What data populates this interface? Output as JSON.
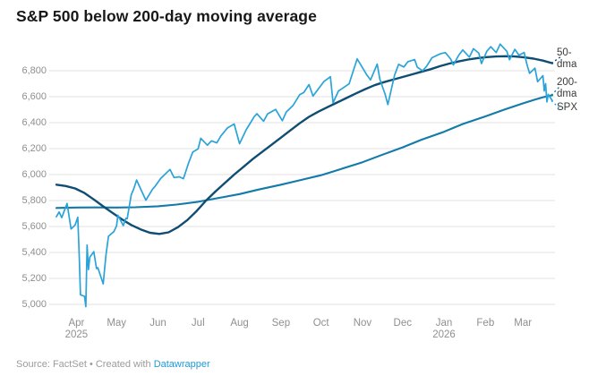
{
  "header": {
    "title": "S&P 500 below 200-day moving average"
  },
  "footer": {
    "source_text": "Source: FactSet",
    "separator": "•",
    "created_with": "Created with",
    "link_label": "Datawrapper",
    "link_color": "#1e9ad6"
  },
  "chart_data": {
    "type": "line",
    "title": "S&P 500 below 200-day moving average",
    "grid": true,
    "legend_position": "right-edge-labels",
    "x_range": [
      "2025-03-17",
      "2026-03-23"
    ],
    "ylim": [
      4930,
      7030
    ],
    "y_ticks": [
      5000,
      5200,
      5400,
      5600,
      5800,
      6000,
      6200,
      6400,
      6600,
      6800
    ],
    "x_ticks": [
      {
        "label": "Apr",
        "sub": "2025",
        "date": "2025-04-01"
      },
      {
        "label": "May",
        "sub": "",
        "date": "2025-05-01"
      },
      {
        "label": "Jun",
        "sub": "",
        "date": "2025-06-01"
      },
      {
        "label": "Jul",
        "sub": "",
        "date": "2025-07-01"
      },
      {
        "label": "Aug",
        "sub": "",
        "date": "2025-08-01"
      },
      {
        "label": "Sep",
        "sub": "",
        "date": "2025-09-01"
      },
      {
        "label": "Oct",
        "sub": "",
        "date": "2025-10-01"
      },
      {
        "label": "Nov",
        "sub": "",
        "date": "2025-11-01"
      },
      {
        "label": "Dec",
        "sub": "",
        "date": "2025-12-01"
      },
      {
        "label": "Jan",
        "sub": "2026",
        "date": "2026-01-01"
      },
      {
        "label": "Feb",
        "sub": "",
        "date": "2026-02-01"
      },
      {
        "label": "Mar",
        "sub": "",
        "date": "2026-03-01"
      }
    ],
    "series": [
      {
        "name": "200-dma",
        "label": "200-dma",
        "color": "#127ba8",
        "width": 2.1,
        "points": [
          [
            "2025-03-17",
            5743
          ],
          [
            "2025-04-01",
            5746
          ],
          [
            "2025-04-15",
            5747
          ],
          [
            "2025-05-01",
            5746
          ],
          [
            "2025-05-15",
            5748
          ],
          [
            "2025-06-01",
            5756
          ],
          [
            "2025-06-15",
            5769
          ],
          [
            "2025-07-01",
            5790
          ],
          [
            "2025-07-15",
            5817
          ],
          [
            "2025-08-01",
            5850
          ],
          [
            "2025-08-15",
            5884
          ],
          [
            "2025-09-01",
            5922
          ],
          [
            "2025-09-15",
            5956
          ],
          [
            "2025-10-01",
            5995
          ],
          [
            "2025-10-15",
            6040
          ],
          [
            "2025-11-01",
            6095
          ],
          [
            "2025-11-15",
            6150
          ],
          [
            "2025-12-01",
            6210
          ],
          [
            "2025-12-15",
            6268
          ],
          [
            "2026-01-01",
            6330
          ],
          [
            "2026-01-15",
            6390
          ],
          [
            "2026-02-01",
            6448
          ],
          [
            "2026-02-15",
            6500
          ],
          [
            "2026-03-01",
            6548
          ],
          [
            "2026-03-10",
            6578
          ],
          [
            "2026-03-17",
            6598
          ],
          [
            "2026-03-23",
            6612
          ]
        ]
      },
      {
        "name": "50-dma",
        "label": "50-dma",
        "color": "#0f4d73",
        "width": 2.4,
        "points": [
          [
            "2025-03-17",
            5922
          ],
          [
            "2025-03-24",
            5912
          ],
          [
            "2025-03-31",
            5893
          ],
          [
            "2025-04-07",
            5858
          ],
          [
            "2025-04-14",
            5808
          ],
          [
            "2025-04-21",
            5755
          ],
          [
            "2025-04-28",
            5705
          ],
          [
            "2025-05-05",
            5655
          ],
          [
            "2025-05-12",
            5612
          ],
          [
            "2025-05-19",
            5578
          ],
          [
            "2025-05-26",
            5552
          ],
          [
            "2025-06-02",
            5543
          ],
          [
            "2025-06-09",
            5555
          ],
          [
            "2025-06-16",
            5595
          ],
          [
            "2025-06-23",
            5650
          ],
          [
            "2025-06-30",
            5720
          ],
          [
            "2025-07-07",
            5800
          ],
          [
            "2025-07-14",
            5870
          ],
          [
            "2025-07-21",
            5935
          ],
          [
            "2025-07-28",
            6000
          ],
          [
            "2025-08-04",
            6060
          ],
          [
            "2025-08-11",
            6120
          ],
          [
            "2025-08-18",
            6175
          ],
          [
            "2025-08-25",
            6230
          ],
          [
            "2025-09-01",
            6285
          ],
          [
            "2025-09-08",
            6340
          ],
          [
            "2025-09-15",
            6395
          ],
          [
            "2025-09-22",
            6445
          ],
          [
            "2025-09-29",
            6485
          ],
          [
            "2025-10-06",
            6520
          ],
          [
            "2025-10-13",
            6555
          ],
          [
            "2025-10-20",
            6590
          ],
          [
            "2025-10-27",
            6625
          ],
          [
            "2025-11-03",
            6658
          ],
          [
            "2025-11-10",
            6688
          ],
          [
            "2025-11-17",
            6712
          ],
          [
            "2025-11-24",
            6732
          ],
          [
            "2025-12-01",
            6752
          ],
          [
            "2025-12-08",
            6772
          ],
          [
            "2025-12-15",
            6792
          ],
          [
            "2025-12-22",
            6812
          ],
          [
            "2025-12-29",
            6835
          ],
          [
            "2026-01-05",
            6855
          ],
          [
            "2026-01-12",
            6872
          ],
          [
            "2026-01-19",
            6886
          ],
          [
            "2026-01-26",
            6897
          ],
          [
            "2026-02-02",
            6905
          ],
          [
            "2026-02-09",
            6910
          ],
          [
            "2026-02-16",
            6912
          ],
          [
            "2026-02-23",
            6910
          ],
          [
            "2026-03-02",
            6903
          ],
          [
            "2026-03-09",
            6893
          ],
          [
            "2026-03-16",
            6878
          ],
          [
            "2026-03-23",
            6858
          ]
        ]
      },
      {
        "name": "SPX",
        "label": "SPX",
        "color": "#2aa3d9",
        "width": 1.7,
        "points": [
          [
            "2025-03-17",
            5675
          ],
          [
            "2025-03-19",
            5712
          ],
          [
            "2025-03-21",
            5668
          ],
          [
            "2025-03-25",
            5777
          ],
          [
            "2025-03-28",
            5581
          ],
          [
            "2025-03-31",
            5612
          ],
          [
            "2025-04-02",
            5671
          ],
          [
            "2025-04-03",
            5396
          ],
          [
            "2025-04-04",
            5074
          ],
          [
            "2025-04-07",
            5062
          ],
          [
            "2025-04-08",
            4983
          ],
          [
            "2025-04-09",
            5457
          ],
          [
            "2025-04-10",
            5268
          ],
          [
            "2025-04-11",
            5363
          ],
          [
            "2025-04-14",
            5406
          ],
          [
            "2025-04-16",
            5276
          ],
          [
            "2025-04-17",
            5283
          ],
          [
            "2025-04-21",
            5158
          ],
          [
            "2025-04-23",
            5376
          ],
          [
            "2025-04-25",
            5525
          ],
          [
            "2025-04-29",
            5561
          ],
          [
            "2025-05-01",
            5604
          ],
          [
            "2025-05-02",
            5687
          ],
          [
            "2025-05-06",
            5607
          ],
          [
            "2025-05-08",
            5663
          ],
          [
            "2025-05-09",
            5660
          ],
          [
            "2025-05-12",
            5844
          ],
          [
            "2025-05-14",
            5893
          ],
          [
            "2025-05-16",
            5958
          ],
          [
            "2025-05-21",
            5845
          ],
          [
            "2025-05-23",
            5803
          ],
          [
            "2025-05-28",
            5888
          ],
          [
            "2025-05-30",
            5912
          ],
          [
            "2025-06-03",
            5970
          ],
          [
            "2025-06-06",
            6000
          ],
          [
            "2025-06-10",
            6039
          ],
          [
            "2025-06-13",
            5977
          ],
          [
            "2025-06-17",
            5983
          ],
          [
            "2025-06-20",
            5968
          ],
          [
            "2025-06-24",
            6092
          ],
          [
            "2025-06-27",
            6173
          ],
          [
            "2025-07-01",
            6198
          ],
          [
            "2025-07-03",
            6279
          ],
          [
            "2025-07-08",
            6226
          ],
          [
            "2025-07-11",
            6260
          ],
          [
            "2025-07-15",
            6244
          ],
          [
            "2025-07-18",
            6297
          ],
          [
            "2025-07-23",
            6359
          ],
          [
            "2025-07-28",
            6390
          ],
          [
            "2025-08-01",
            6238
          ],
          [
            "2025-08-06",
            6345
          ],
          [
            "2025-08-12",
            6446
          ],
          [
            "2025-08-14",
            6469
          ],
          [
            "2025-08-19",
            6411
          ],
          [
            "2025-08-22",
            6467
          ],
          [
            "2025-08-28",
            6502
          ],
          [
            "2025-09-02",
            6415
          ],
          [
            "2025-09-05",
            6482
          ],
          [
            "2025-09-10",
            6532
          ],
          [
            "2025-09-15",
            6615
          ],
          [
            "2025-09-18",
            6632
          ],
          [
            "2025-09-22",
            6693
          ],
          [
            "2025-09-25",
            6605
          ],
          [
            "2025-09-29",
            6661
          ],
          [
            "2025-10-03",
            6716
          ],
          [
            "2025-10-08",
            6754
          ],
          [
            "2025-10-10",
            6553
          ],
          [
            "2025-10-14",
            6644
          ],
          [
            "2025-10-17",
            6664
          ],
          [
            "2025-10-22",
            6699
          ],
          [
            "2025-10-28",
            6891
          ],
          [
            "2025-10-31",
            6840
          ],
          [
            "2025-11-04",
            6772
          ],
          [
            "2025-11-07",
            6729
          ],
          [
            "2025-11-12",
            6851
          ],
          [
            "2025-11-14",
            6734
          ],
          [
            "2025-11-18",
            6617
          ],
          [
            "2025-11-20",
            6539
          ],
          [
            "2025-11-25",
            6766
          ],
          [
            "2025-11-28",
            6849
          ],
          [
            "2025-12-02",
            6829
          ],
          [
            "2025-12-05",
            6870
          ],
          [
            "2025-12-10",
            6886
          ],
          [
            "2025-12-12",
            6827
          ],
          [
            "2025-12-16",
            6800
          ],
          [
            "2025-12-19",
            6835
          ],
          [
            "2025-12-23",
            6900
          ],
          [
            "2025-12-29",
            6930
          ],
          [
            "2026-01-02",
            6940
          ],
          [
            "2026-01-06",
            6890
          ],
          [
            "2026-01-08",
            6845
          ],
          [
            "2026-01-12",
            6920
          ],
          [
            "2026-01-15",
            6960
          ],
          [
            "2026-01-20",
            6905
          ],
          [
            "2026-01-23",
            6970
          ],
          [
            "2026-01-27",
            6935
          ],
          [
            "2026-01-29",
            6855
          ],
          [
            "2026-02-02",
            6950
          ],
          [
            "2026-02-05",
            6985
          ],
          [
            "2026-02-09",
            6940
          ],
          [
            "2026-02-12",
            7005
          ],
          [
            "2026-02-17",
            6950
          ],
          [
            "2026-02-19",
            6885
          ],
          [
            "2026-02-23",
            6965
          ],
          [
            "2026-02-26",
            6920
          ],
          [
            "2026-03-02",
            6940
          ],
          [
            "2026-03-04",
            6850
          ],
          [
            "2026-03-06",
            6780
          ],
          [
            "2026-03-10",
            6820
          ],
          [
            "2026-03-12",
            6715
          ],
          [
            "2026-03-16",
            6762
          ],
          [
            "2026-03-17",
            6645
          ],
          [
            "2026-03-18",
            6700
          ],
          [
            "2026-03-19",
            6560
          ],
          [
            "2026-03-20",
            6618
          ],
          [
            "2026-03-23",
            6570
          ]
        ]
      }
    ]
  }
}
